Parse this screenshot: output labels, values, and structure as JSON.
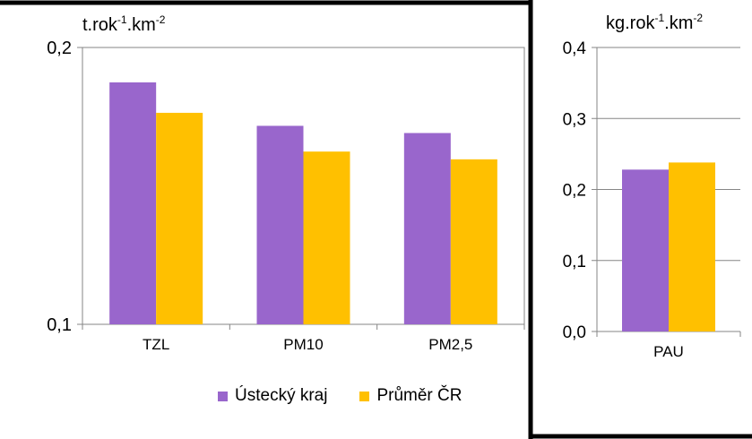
{
  "colors": {
    "series1": "#9966cc",
    "series2": "#ffc000",
    "axis": "#868686",
    "frame": "#000000"
  },
  "legend": {
    "items": [
      "Ústecký kraj",
      "Průměr ČR"
    ]
  },
  "chart_data": [
    {
      "type": "bar",
      "unit_label": {
        "base": "t.rok",
        "exp1": "-1",
        "mid": ".km",
        "exp2": "-2"
      },
      "categories": [
        "TZL",
        "PM10",
        "PM2,5"
      ],
      "series": [
        {
          "name": "Ústecký kraj",
          "values": [
            0.1874,
            0.1717,
            0.1691
          ]
        },
        {
          "name": "Průměr ČR",
          "values": [
            0.1764,
            0.1624,
            0.1596
          ]
        }
      ],
      "ylim": [
        0.1,
        0.2
      ],
      "yticks": [
        0.1,
        0.2
      ],
      "ytick_labels": [
        "0,1",
        "0,2"
      ],
      "grid": false,
      "legend_position": "bottom"
    },
    {
      "type": "bar",
      "unit_label": {
        "base": "kg.rok",
        "exp1": "-1",
        "mid": ".km",
        "exp2": "-2"
      },
      "categories": [
        "PAU"
      ],
      "series": [
        {
          "name": "Ústecký kraj",
          "values": [
            0.228
          ]
        },
        {
          "name": "Průměr ČR",
          "values": [
            0.238
          ]
        }
      ],
      "ylim": [
        0.0,
        0.4
      ],
      "yticks": [
        0.0,
        0.1,
        0.2,
        0.3,
        0.4
      ],
      "ytick_labels": [
        "0,0",
        "0,1",
        "0,2",
        "0,3",
        "0,4"
      ],
      "grid": true
    }
  ]
}
